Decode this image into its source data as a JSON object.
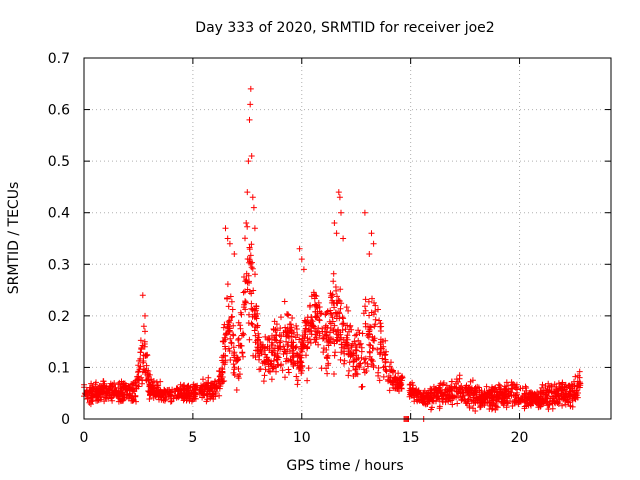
{
  "chart_data": {
    "type": "scatter",
    "title": "Day 333 of 2020, SRMTID for receiver joe2",
    "xlabel": "GPS time / hours",
    "ylabel": "SRMTID / TECUs",
    "xlim": [
      0,
      24.2
    ],
    "ylim": [
      0,
      0.7
    ],
    "x_ticks": [
      "0",
      "5",
      "10",
      "15",
      "20"
    ],
    "x_tick_values": [
      0,
      5,
      10,
      15,
      20
    ],
    "y_ticks": [
      "0",
      "0.1",
      "0.2",
      "0.3",
      "0.4",
      "0.5",
      "0.6",
      "0.7"
    ],
    "y_tick_values": [
      0,
      0.1,
      0.2,
      0.3,
      0.4,
      0.5,
      0.6,
      0.7
    ],
    "grid": true,
    "marker": "plus",
    "series_color": "#ff0000",
    "envelope": {
      "x": [
        0.0,
        0.5,
        1.0,
        1.5,
        2.0,
        2.4,
        2.6,
        2.8,
        3.0,
        3.5,
        4.0,
        4.5,
        5.0,
        5.5,
        6.0,
        6.3,
        6.6,
        6.8,
        7.0,
        7.3,
        7.5,
        7.7,
        8.0,
        8.3,
        8.6,
        9.0,
        9.3,
        9.6,
        10.0,
        10.3,
        10.6,
        11.0,
        11.3,
        11.6,
        11.9,
        12.2,
        12.5,
        12.8,
        13.1,
        13.4,
        13.7,
        14.0,
        14.3,
        14.6,
        14.8,
        15.5,
        16.0,
        16.5,
        17.0,
        17.5,
        18.0,
        18.5,
        19.0,
        19.5,
        20.0,
        20.5,
        21.0,
        21.5,
        22.0,
        22.5,
        22.8
      ],
      "mid": [
        0.05,
        0.05,
        0.055,
        0.05,
        0.055,
        0.06,
        0.11,
        0.12,
        0.06,
        0.05,
        0.05,
        0.05,
        0.05,
        0.055,
        0.06,
        0.08,
        0.2,
        0.16,
        0.09,
        0.2,
        0.28,
        0.24,
        0.14,
        0.12,
        0.13,
        0.15,
        0.16,
        0.14,
        0.12,
        0.17,
        0.2,
        0.16,
        0.18,
        0.2,
        0.17,
        0.14,
        0.12,
        0.13,
        0.16,
        0.18,
        0.13,
        0.09,
        0.07,
        0.07,
        0.06,
        0.04,
        0.045,
        0.05,
        0.05,
        0.05,
        0.045,
        0.04,
        0.045,
        0.05,
        0.045,
        0.04,
        0.04,
        0.045,
        0.05,
        0.05,
        0.07
      ],
      "spread": [
        0.025,
        0.025,
        0.03,
        0.03,
        0.03,
        0.04,
        0.06,
        0.07,
        0.03,
        0.025,
        0.025,
        0.025,
        0.025,
        0.03,
        0.03,
        0.05,
        0.12,
        0.1,
        0.06,
        0.12,
        0.18,
        0.14,
        0.07,
        0.06,
        0.07,
        0.09,
        0.1,
        0.08,
        0.08,
        0.1,
        0.1,
        0.09,
        0.11,
        0.14,
        0.1,
        0.08,
        0.07,
        0.09,
        0.13,
        0.12,
        0.08,
        0.04,
        0.03,
        0.03,
        0.03,
        0.02,
        0.03,
        0.035,
        0.04,
        0.04,
        0.035,
        0.03,
        0.035,
        0.035,
        0.03,
        0.03,
        0.03,
        0.035,
        0.035,
        0.035,
        0.04
      ]
    },
    "spikes": [
      {
        "x": 2.7,
        "y": 0.24
      },
      {
        "x": 2.8,
        "y": 0.2
      },
      {
        "x": 2.75,
        "y": 0.18
      },
      {
        "x": 6.5,
        "y": 0.37
      },
      {
        "x": 6.6,
        "y": 0.35
      },
      {
        "x": 6.7,
        "y": 0.34
      },
      {
        "x": 6.9,
        "y": 0.32
      },
      {
        "x": 7.5,
        "y": 0.44
      },
      {
        "x": 7.55,
        "y": 0.5
      },
      {
        "x": 7.6,
        "y": 0.58
      },
      {
        "x": 7.63,
        "y": 0.61
      },
      {
        "x": 7.66,
        "y": 0.64
      },
      {
        "x": 7.7,
        "y": 0.51
      },
      {
        "x": 7.75,
        "y": 0.43
      },
      {
        "x": 7.8,
        "y": 0.41
      },
      {
        "x": 7.45,
        "y": 0.38
      },
      {
        "x": 7.85,
        "y": 0.37
      },
      {
        "x": 9.9,
        "y": 0.33
      },
      {
        "x": 10.0,
        "y": 0.31
      },
      {
        "x": 10.1,
        "y": 0.29
      },
      {
        "x": 11.5,
        "y": 0.38
      },
      {
        "x": 11.7,
        "y": 0.44
      },
      {
        "x": 11.75,
        "y": 0.43
      },
      {
        "x": 11.8,
        "y": 0.4
      },
      {
        "x": 11.6,
        "y": 0.36
      },
      {
        "x": 11.9,
        "y": 0.35
      },
      {
        "x": 12.9,
        "y": 0.4
      },
      {
        "x": 13.2,
        "y": 0.36
      },
      {
        "x": 13.3,
        "y": 0.34
      },
      {
        "x": 13.1,
        "y": 0.32
      }
    ],
    "zero_points_x": [
      14.7,
      14.75,
      14.8,
      14.85,
      14.9,
      15.6
    ],
    "n_points": 2200
  }
}
